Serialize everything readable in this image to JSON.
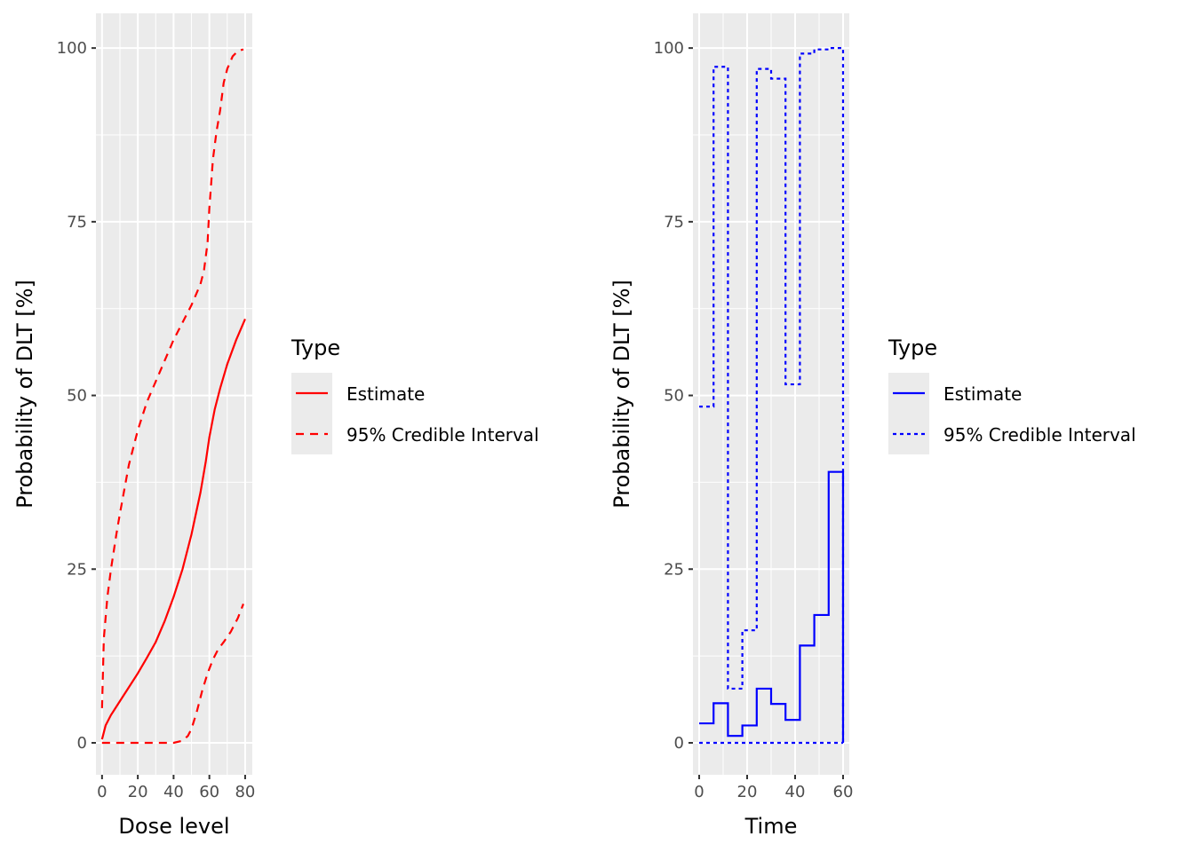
{
  "chart_data": [
    {
      "type": "line",
      "xlabel": "Dose level",
      "ylabel": "Probability of DLT [%]",
      "xlim": [
        -3.4,
        84
      ],
      "ylim": [
        -4.6,
        105
      ],
      "xticks": [
        0,
        20,
        40,
        60,
        80
      ],
      "yticks": [
        0,
        25,
        50,
        75,
        100
      ],
      "grid": true,
      "color": "#ff0000",
      "legend": {
        "title": "Type",
        "placement": "right",
        "entries": [
          "Estimate",
          "95% Credible Interval"
        ]
      },
      "series": [
        {
          "name": "Estimate",
          "style": "solid",
          "x": [
            0,
            2,
            5,
            10,
            15,
            20,
            25,
            30,
            35,
            40,
            45,
            50,
            55,
            58,
            60,
            63,
            66,
            70,
            75,
            80
          ],
          "y": [
            0.5,
            2.5,
            4,
            6,
            8,
            10,
            12.2,
            14.5,
            17.5,
            21,
            25,
            30,
            36,
            40.5,
            44,
            48,
            51,
            54.5,
            58,
            61
          ]
        },
        {
          "name": "95% Credible Interval",
          "style": "dashed",
          "x": [
            0,
            1,
            3,
            5,
            8,
            10,
            15,
            20,
            25,
            30,
            35,
            40,
            45,
            50,
            55,
            57,
            59,
            60,
            62,
            64,
            66,
            68,
            70,
            73,
            76,
            79
          ],
          "y": [
            5,
            15,
            21,
            25,
            30,
            33,
            40,
            45,
            49,
            52,
            55,
            58,
            60.5,
            63,
            66,
            68,
            72,
            77,
            84,
            88,
            91,
            95,
            97,
            98.8,
            99.6,
            99.8
          ]
        },
        {
          "style": "dashed",
          "x": [
            0,
            10,
            20,
            30,
            40,
            45,
            48,
            50,
            53,
            56,
            59,
            62,
            65,
            68,
            72,
            76,
            79
          ],
          "y": [
            0,
            0,
            0,
            0,
            0,
            0.3,
            1,
            2,
            4.5,
            7.5,
            10,
            12,
            13.5,
            14.5,
            16,
            18,
            20
          ]
        }
      ]
    },
    {
      "type": "line",
      "xlabel": "Time",
      "ylabel": "Probability of DLT [%]",
      "xlim": [
        -2.6,
        62.6
      ],
      "ylim": [
        -4.6,
        105
      ],
      "xticks": [
        0,
        20,
        40,
        60
      ],
      "yticks": [
        0,
        25,
        50,
        75,
        100
      ],
      "grid": true,
      "color": "#0000ff",
      "legend": {
        "title": "Type",
        "placement": "right",
        "entries": [
          "Estimate",
          "95% Credible Interval"
        ]
      },
      "series": [
        {
          "name": "Estimate",
          "style": "step-solid",
          "x": [
            0,
            6,
            12,
            18,
            24,
            30,
            36,
            42,
            48,
            54,
            60
          ],
          "y": [
            2.8,
            5.7,
            1.0,
            2.5,
            7.8,
            5.6,
            3.3,
            14,
            18.4,
            39,
            0
          ]
        },
        {
          "name": "95% Credible Interval",
          "style": "step-dotted",
          "x": [
            0,
            6,
            12,
            18,
            24,
            30,
            36,
            42,
            48,
            54,
            60
          ],
          "y": [
            48.4,
            97.3,
            7.8,
            16.2,
            97.0,
            95.6,
            51.6,
            99.2,
            99.8,
            100,
            0
          ]
        },
        {
          "style": "step-dotted",
          "x": [
            0,
            60
          ],
          "y": [
            0,
            0
          ]
        }
      ]
    }
  ]
}
